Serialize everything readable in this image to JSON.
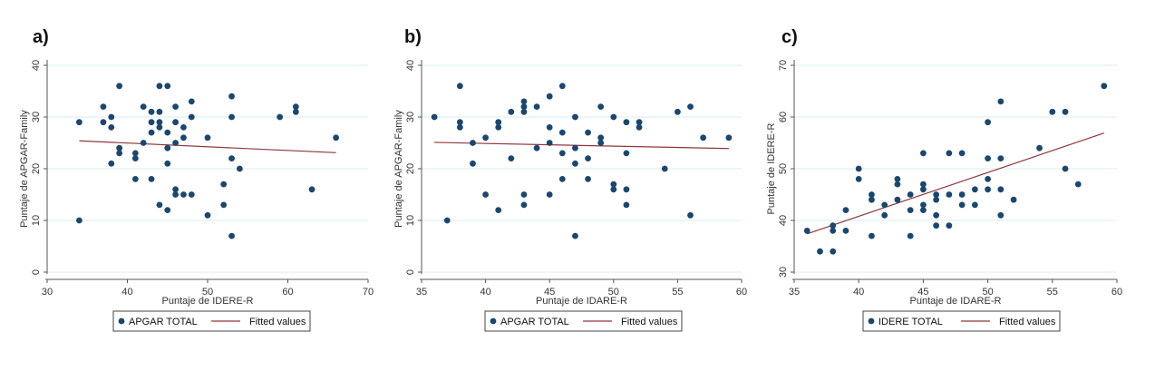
{
  "colors": {
    "marker": "#1a476f",
    "fit_line": "#90353b",
    "grid": "#d9eef0",
    "axis": "#555555"
  },
  "chart_data": [
    {
      "type": "scatter",
      "panel_label": "a)",
      "xlabel": "Puntaje de IDERE-R",
      "ylabel": "Puntaje de APGAR-Family",
      "xlim": [
        30,
        70
      ],
      "ylim": [
        0,
        40
      ],
      "xticks": [
        30,
        40,
        50,
        60,
        70
      ],
      "yticks": [
        0,
        10,
        20,
        30,
        40
      ],
      "legend": {
        "scatter_label": "APGAR TOTAL",
        "line_label": "Fitted values",
        "position": "bottom"
      },
      "fit": {
        "x": [
          34,
          66
        ],
        "y": [
          25.4,
          23.1
        ]
      },
      "points": [
        [
          34,
          29
        ],
        [
          34,
          10
        ],
        [
          37,
          32
        ],
        [
          37,
          29
        ],
        [
          38,
          30
        ],
        [
          38,
          28
        ],
        [
          38,
          21
        ],
        [
          39,
          36
        ],
        [
          39,
          24
        ],
        [
          39,
          23
        ],
        [
          41,
          23
        ],
        [
          41,
          22
        ],
        [
          41,
          18
        ],
        [
          42,
          32
        ],
        [
          42,
          25
        ],
        [
          43,
          31
        ],
        [
          43,
          29
        ],
        [
          43,
          27
        ],
        [
          43,
          18
        ],
        [
          44,
          36
        ],
        [
          44,
          31
        ],
        [
          44,
          29
        ],
        [
          44,
          28
        ],
        [
          44,
          13
        ],
        [
          45,
          36
        ],
        [
          45,
          27
        ],
        [
          45,
          24
        ],
        [
          45,
          21
        ],
        [
          45,
          12
        ],
        [
          46,
          32
        ],
        [
          46,
          29
        ],
        [
          46,
          25
        ],
        [
          46,
          16
        ],
        [
          46,
          15
        ],
        [
          47,
          28
        ],
        [
          47,
          26
        ],
        [
          47,
          15
        ],
        [
          48,
          33
        ],
        [
          48,
          30
        ],
        [
          48,
          15
        ],
        [
          50,
          26
        ],
        [
          50,
          11
        ],
        [
          52,
          17
        ],
        [
          52,
          13
        ],
        [
          53,
          34
        ],
        [
          53,
          30
        ],
        [
          53,
          22
        ],
        [
          53,
          7
        ],
        [
          54,
          20
        ],
        [
          59,
          30
        ],
        [
          61,
          32
        ],
        [
          61,
          31
        ],
        [
          63,
          16
        ],
        [
          66,
          26
        ]
      ]
    },
    {
      "type": "scatter",
      "panel_label": "b)",
      "xlabel": "Puntaje de IDARE-R",
      "ylabel": "Puntaje de APGAR-Family",
      "xlim": [
        35,
        60
      ],
      "ylim": [
        0,
        40
      ],
      "xticks": [
        35,
        40,
        45,
        50,
        55,
        60
      ],
      "yticks": [
        0,
        10,
        20,
        30,
        40
      ],
      "legend": {
        "scatter_label": "APGAR TOTAL",
        "line_label": "Fitted values",
        "position": "bottom"
      },
      "fit": {
        "x": [
          36,
          59
        ],
        "y": [
          25.1,
          23.9
        ]
      },
      "points": [
        [
          36,
          30
        ],
        [
          37,
          10
        ],
        [
          38,
          36
        ],
        [
          38,
          29
        ],
        [
          38,
          28
        ],
        [
          39,
          25
        ],
        [
          39,
          21
        ],
        [
          40,
          26
        ],
        [
          40,
          15
        ],
        [
          41,
          29
        ],
        [
          41,
          28
        ],
        [
          41,
          12
        ],
        [
          42,
          31
        ],
        [
          42,
          22
        ],
        [
          43,
          33
        ],
        [
          43,
          32
        ],
        [
          43,
          31
        ],
        [
          43,
          15
        ],
        [
          43,
          13
        ],
        [
          44,
          32
        ],
        [
          44,
          24
        ],
        [
          45,
          34
        ],
        [
          45,
          28
        ],
        [
          45,
          25
        ],
        [
          45,
          15
        ],
        [
          46,
          36
        ],
        [
          46,
          27
        ],
        [
          46,
          23
        ],
        [
          46,
          18
        ],
        [
          47,
          30
        ],
        [
          47,
          24
        ],
        [
          47,
          21
        ],
        [
          47,
          7
        ],
        [
          48,
          27
        ],
        [
          48,
          22
        ],
        [
          48,
          18
        ],
        [
          49,
          32
        ],
        [
          49,
          26
        ],
        [
          49,
          25
        ],
        [
          50,
          30
        ],
        [
          50,
          17
        ],
        [
          50,
          16
        ],
        [
          51,
          29
        ],
        [
          51,
          23
        ],
        [
          51,
          16
        ],
        [
          51,
          13
        ],
        [
          52,
          29
        ],
        [
          52,
          28
        ],
        [
          54,
          20
        ],
        [
          55,
          31
        ],
        [
          56,
          32
        ],
        [
          56,
          11
        ],
        [
          57,
          26
        ],
        [
          59,
          26
        ]
      ]
    },
    {
      "type": "scatter",
      "panel_label": "c)",
      "xlabel": "Puntaje de IDARE-R",
      "ylabel": "Puntaje de IDERE-R",
      "xlim": [
        35,
        60
      ],
      "ylim": [
        30,
        70
      ],
      "xticks": [
        35,
        40,
        45,
        50,
        55,
        60
      ],
      "yticks": [
        30,
        40,
        50,
        60,
        70
      ],
      "legend": {
        "scatter_label": "IDERE TOTAL",
        "line_label": "Fitted values",
        "position": "bottom"
      },
      "fit": {
        "x": [
          36,
          59
        ],
        "y": [
          37.4,
          56.9
        ]
      },
      "points": [
        [
          36,
          38
        ],
        [
          37,
          34
        ],
        [
          38,
          39
        ],
        [
          38,
          38
        ],
        [
          38,
          34
        ],
        [
          39,
          42
        ],
        [
          39,
          38
        ],
        [
          40,
          50
        ],
        [
          40,
          48
        ],
        [
          41,
          45
        ],
        [
          41,
          44
        ],
        [
          41,
          37
        ],
        [
          42,
          43
        ],
        [
          42,
          41
        ],
        [
          43,
          48
        ],
        [
          43,
          47
        ],
        [
          43,
          44
        ],
        [
          44,
          45
        ],
        [
          44,
          42
        ],
        [
          44,
          37
        ],
        [
          45,
          53
        ],
        [
          45,
          47
        ],
        [
          45,
          46
        ],
        [
          45,
          43
        ],
        [
          45,
          42
        ],
        [
          46,
          45
        ],
        [
          46,
          44
        ],
        [
          46,
          41
        ],
        [
          46,
          39
        ],
        [
          47,
          53
        ],
        [
          47,
          45
        ],
        [
          47,
          39
        ],
        [
          48,
          53
        ],
        [
          48,
          45
        ],
        [
          48,
          43
        ],
        [
          49,
          46
        ],
        [
          49,
          43
        ],
        [
          50,
          59
        ],
        [
          50,
          52
        ],
        [
          50,
          48
        ],
        [
          50,
          46
        ],
        [
          51,
          63
        ],
        [
          51,
          52
        ],
        [
          51,
          46
        ],
        [
          51,
          41
        ],
        [
          52,
          44
        ],
        [
          54,
          54
        ],
        [
          55,
          61
        ],
        [
          56,
          61
        ],
        [
          56,
          50
        ],
        [
          57,
          47
        ],
        [
          59,
          66
        ]
      ]
    }
  ]
}
